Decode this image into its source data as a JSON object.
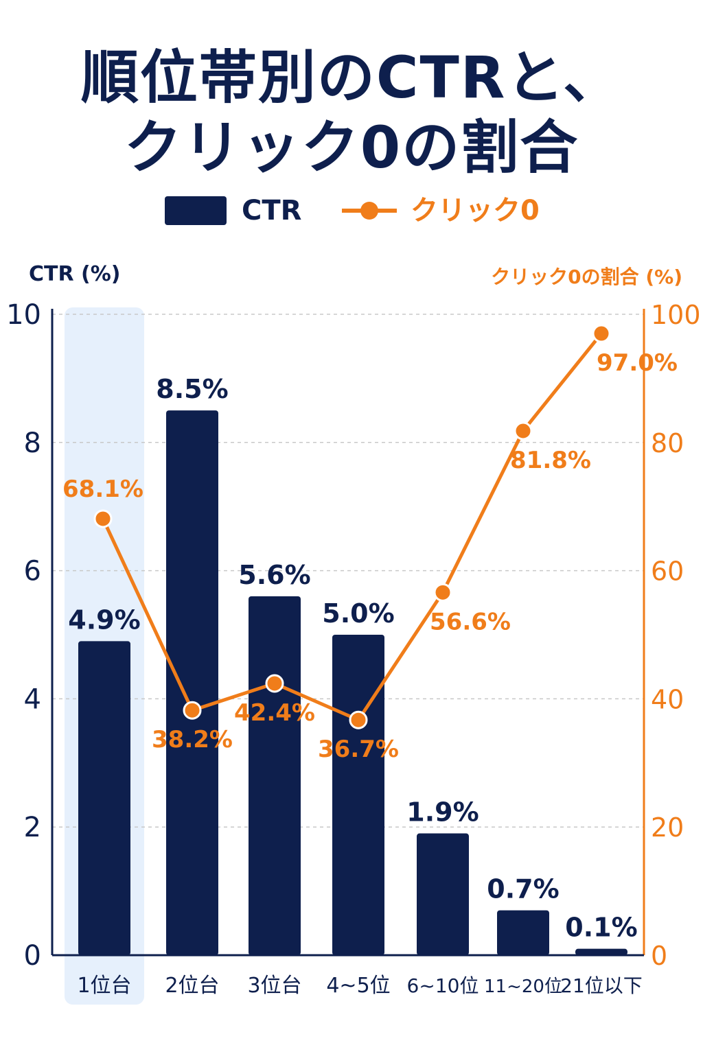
{
  "title": {
    "line1": "順位帯別のCTRと、",
    "line2": "クリック0の割合"
  },
  "legend": {
    "bar_label": "CTR",
    "line_label": "クリック0"
  },
  "colors": {
    "bar": "#0e1f4d",
    "line": "#f07d1a",
    "highlight": "#e6f0fc",
    "grid": "#c8c8c8"
  },
  "chart_data": {
    "type": "bar",
    "categories": [
      "1位台",
      "2位台",
      "3位台",
      "4~5位",
      "6~10位",
      "11~20位",
      "21位以下"
    ],
    "series": [
      {
        "name": "CTR",
        "type": "bar",
        "axis": "left",
        "values": [
          4.9,
          8.5,
          5.6,
          5.0,
          1.9,
          0.7,
          0.1
        ],
        "labels": [
          "4.9%",
          "8.5%",
          "5.6%",
          "5.0%",
          "1.9%",
          "0.7%",
          "0.1%"
        ]
      },
      {
        "name": "クリック0",
        "type": "line",
        "axis": "right",
        "values": [
          68.1,
          38.2,
          42.4,
          36.7,
          56.6,
          81.8,
          97.0
        ],
        "labels": [
          "68.1%",
          "38.2%",
          "42.4%",
          "36.7%",
          "56.6%",
          "81.8%",
          "97.0%"
        ]
      }
    ],
    "ylabel": "CTR (%)",
    "ylabel_right": "クリック0の割合 (%)",
    "ylim": [
      0,
      10
    ],
    "ylim_right": [
      0,
      100
    ],
    "yticks": [
      "0",
      "2",
      "4",
      "6",
      "8",
      "10"
    ],
    "yticks_right": [
      "0",
      "20",
      "40",
      "60",
      "80",
      "100"
    ],
    "highlighted_category": "1位台",
    "grid": true,
    "legend_position": "top-center"
  }
}
